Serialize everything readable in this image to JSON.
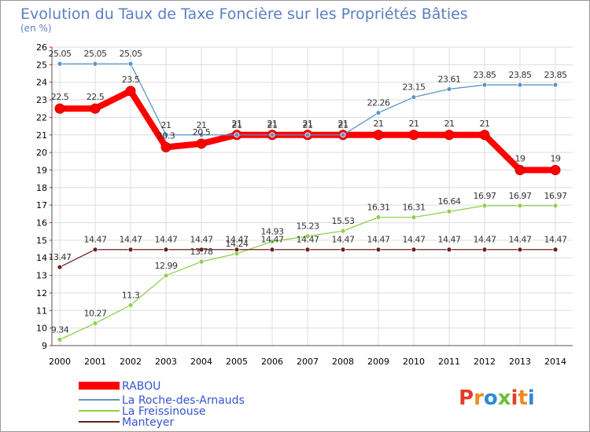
{
  "chart_data": {
    "type": "line",
    "title": "Evolution du Taux de Taxe Foncière sur les Propriétés Bâties",
    "subtitle": "(en %)",
    "x": [
      "2000",
      "2001",
      "2002",
      "2003",
      "2004",
      "2005",
      "2006",
      "2007",
      "2008",
      "2009",
      "2010",
      "2011",
      "2012",
      "2013",
      "2014"
    ],
    "ylim": [
      9,
      26
    ],
    "yticks": [
      "9",
      "10",
      "11",
      "12",
      "13",
      "14",
      "15",
      "16",
      "17",
      "18",
      "19",
      "20",
      "21",
      "22",
      "23",
      "24",
      "25",
      "26"
    ],
    "grid": true,
    "legend_position": "bottom-left",
    "series": [
      {
        "name": "RABOU",
        "color": "#ff0000",
        "values": [
          22.5,
          22.5,
          23.5,
          20.3,
          20.5,
          21,
          21,
          21,
          21,
          21,
          21,
          21,
          21,
          19,
          19
        ],
        "labels": [
          "22.5",
          "22.5",
          "23.5",
          "20.3",
          "20.5",
          "21",
          "21",
          "21",
          "21",
          "21",
          "21",
          "21",
          "21",
          "19",
          "19"
        ]
      },
      {
        "name": "La Roche-des-Arnauds",
        "color": "#5b95c9",
        "values": [
          25.05,
          25.05,
          25.05,
          21,
          21,
          21,
          21,
          21,
          21,
          22.26,
          23.15,
          23.61,
          23.85,
          23.85,
          23.85
        ],
        "labels": [
          "25.05",
          "25.05",
          "25.05",
          "21",
          "21",
          "21",
          "21",
          "21",
          "21",
          "22.26",
          "23.15",
          "23.61",
          "23.85",
          "23.85",
          "23.85"
        ]
      },
      {
        "name": "La Freissinouse",
        "color": "#8ed14b",
        "values": [
          9.34,
          10.27,
          11.3,
          12.99,
          13.78,
          14.24,
          14.93,
          15.23,
          15.53,
          16.31,
          16.31,
          16.64,
          16.97,
          16.97,
          16.97
        ],
        "labels": [
          "9.34",
          "10.27",
          "11.3",
          "12.99",
          "13.78",
          "14.24",
          "14.93",
          "15.23",
          "15.53",
          "16.31",
          "16.31",
          "16.64",
          "16.97",
          "16.97",
          "16.97"
        ]
      },
      {
        "name": "Manteyer",
        "color": "#6b1f1f",
        "values": [
          13.47,
          14.47,
          14.47,
          14.47,
          14.47,
          14.47,
          14.47,
          14.47,
          14.47,
          14.47,
          14.47,
          14.47,
          14.47,
          14.47,
          14.47
        ],
        "labels": [
          "13.47",
          "14.47",
          "14.47",
          "14.47",
          "14.47",
          "14.47",
          "14.47",
          "14.47",
          "14.47",
          "14.47",
          "14.47",
          "14.47",
          "14.47",
          "14.47",
          "14.47"
        ]
      }
    ]
  },
  "logo": {
    "text": "Proxiti",
    "colors": [
      "#e23d2b",
      "#f08a1c",
      "#2e8ad8",
      "#6cbf3a"
    ]
  }
}
